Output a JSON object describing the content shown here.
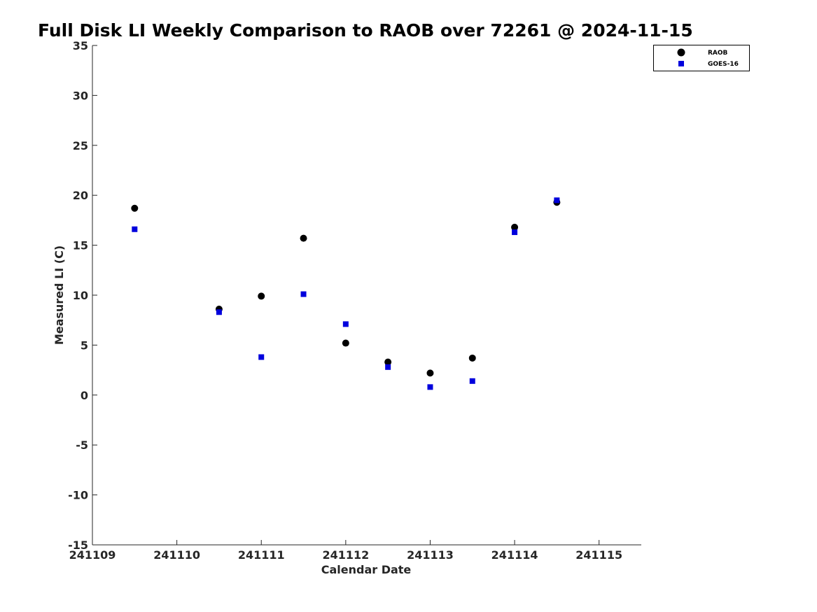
{
  "chart_data": {
    "type": "scatter",
    "title": "Full Disk LI Weekly Comparison to RAOB over 72261 @ 2024-11-15",
    "xlabel": "Calendar Date",
    "ylabel": "Measured LI (C)",
    "xlim": [
      "2024-11-09",
      "2024-11-15 12:00"
    ],
    "ylim": [
      -15,
      35
    ],
    "x_ticks": [
      "2024-11-09",
      "2024-11-10",
      "2024-11-11",
      "2024-11-12",
      "2024-11-13",
      "2024-11-14",
      "2024-11-15"
    ],
    "x_tick_labels": [
      "241109",
      "241110",
      "241111",
      "241112",
      "241113",
      "241114",
      "241115"
    ],
    "y_ticks": [
      35,
      30,
      25,
      20,
      15,
      10,
      5,
      0,
      -5,
      -10,
      -15
    ],
    "y_tick_labels": [
      "35",
      "30",
      "25",
      "20",
      "15",
      "10",
      "5",
      "0",
      "-5",
      "-10",
      "-15"
    ],
    "grid": false,
    "legend_position": "top-right",
    "series": [
      {
        "name": "RAOB",
        "marker": "circle",
        "color": "#000000",
        "points": [
          {
            "x": "2024-11-09 12:00",
            "y": 18.7
          },
          {
            "x": "2024-11-10 12:00",
            "y": 8.6
          },
          {
            "x": "2024-11-11 00:00",
            "y": 9.9
          },
          {
            "x": "2024-11-11 12:00",
            "y": 15.7
          },
          {
            "x": "2024-11-12 00:00",
            "y": 5.2
          },
          {
            "x": "2024-11-12 12:00",
            "y": 3.3
          },
          {
            "x": "2024-11-13 00:00",
            "y": 2.2
          },
          {
            "x": "2024-11-13 12:00",
            "y": 3.7
          },
          {
            "x": "2024-11-14 00:00",
            "y": 16.8
          },
          {
            "x": "2024-11-14 12:00",
            "y": 19.3
          }
        ]
      },
      {
        "name": "GOES-16",
        "marker": "square",
        "color": "#0000dd",
        "points": [
          {
            "x": "2024-11-09 12:00",
            "y": 16.6
          },
          {
            "x": "2024-11-10 12:00",
            "y": 8.3
          },
          {
            "x": "2024-11-11 00:00",
            "y": 3.8
          },
          {
            "x": "2024-11-11 12:00",
            "y": 10.1
          },
          {
            "x": "2024-11-12 00:00",
            "y": 7.1
          },
          {
            "x": "2024-11-12 12:00",
            "y": 2.8
          },
          {
            "x": "2024-11-13 00:00",
            "y": 0.8
          },
          {
            "x": "2024-11-13 12:00",
            "y": 1.4
          },
          {
            "x": "2024-11-14 00:00",
            "y": 16.3
          },
          {
            "x": "2024-11-14 12:00",
            "y": 19.5
          }
        ]
      }
    ]
  }
}
